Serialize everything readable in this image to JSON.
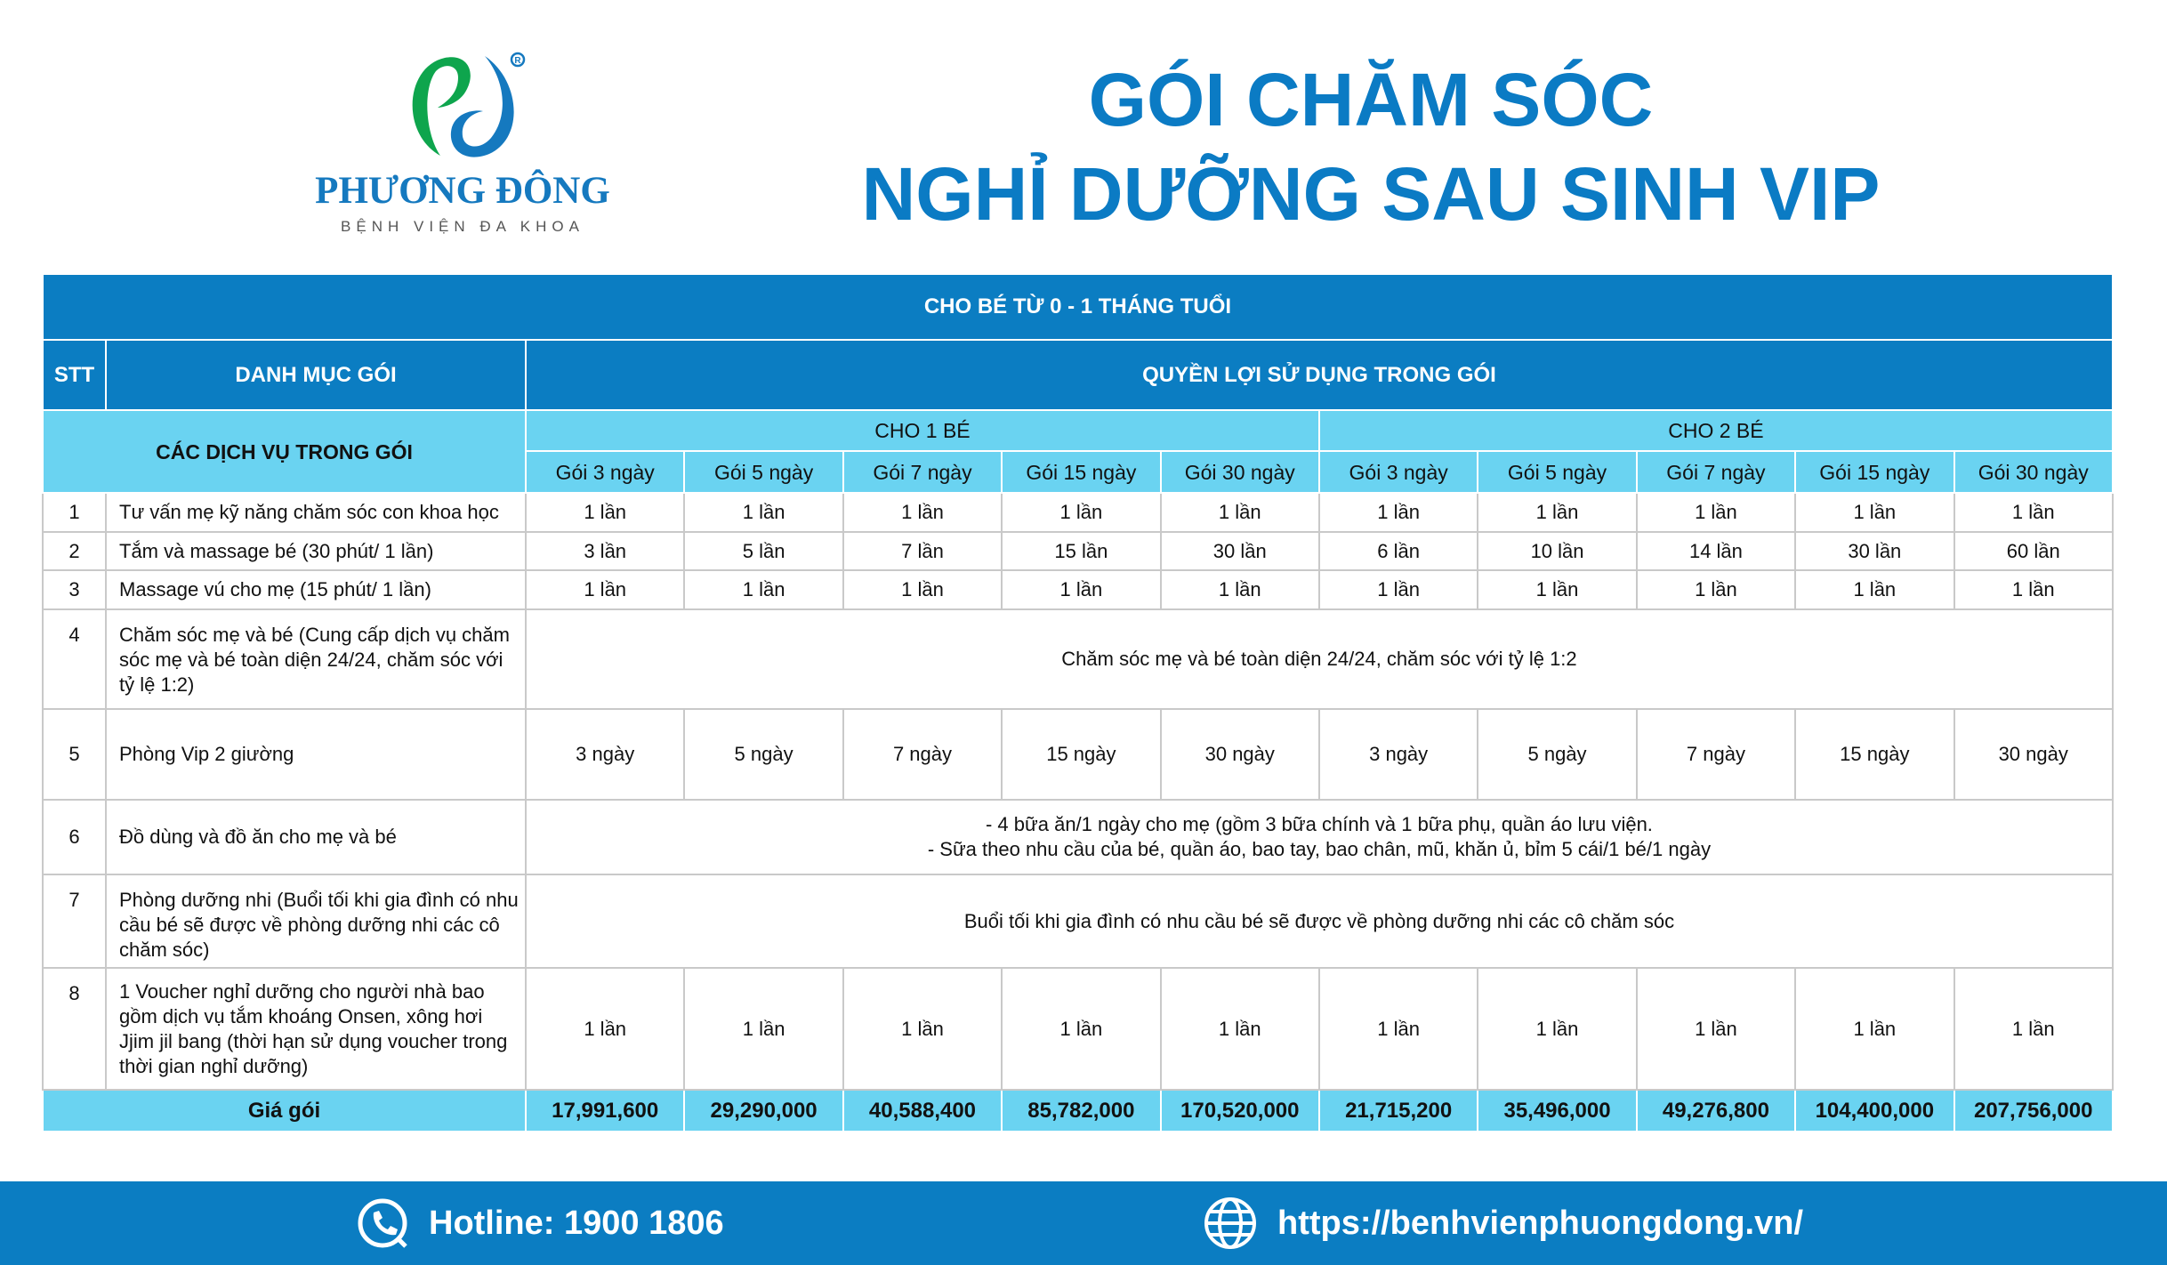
{
  "logo": {
    "brand": "PHƯƠNG ĐÔNG",
    "sub": "BỆNH VIỆN ĐA KHOA",
    "colors": {
      "green": "#0ea54d",
      "blue": "#1579bf"
    }
  },
  "title": {
    "line1": "GÓI CHĂM SÓC",
    "line2": "NGHỈ DƯỠNG SAU SINH VIP"
  },
  "colors": {
    "dark_blue": "#0b7dc2",
    "light_blue": "#6ad3f1"
  },
  "table": {
    "banner": "CHO BÉ TỪ 0 - 1 THÁNG TUỔI",
    "col_stt": "STT",
    "col_category": "DANH MỤC GÓI",
    "col_benefits": "QUYỀN LỢI SỬ DỤNG TRONG GÓI",
    "services_label": "CÁC DỊCH VỤ TRONG GÓI",
    "group1": "CHO 1 BÉ",
    "group2": "CHO 2 BÉ",
    "packages": [
      "Gói 3 ngày",
      "Gói 5 ngày",
      "Gói 7 ngày",
      "Gói 15 ngày",
      "Gói 30 ngày",
      "Gói 3 ngày",
      "Gói 5 ngày",
      "Gói 7 ngày",
      "Gói 15 ngày",
      "Gói 30 ngày"
    ],
    "rows": [
      {
        "stt": "1",
        "name": "Tư vấn mẹ kỹ năng chăm sóc con khoa học",
        "values": [
          "1 lần",
          "1 lần",
          "1 lần",
          "1 lần",
          "1 lần",
          "1 lần",
          "1 lần",
          "1 lần",
          "1 lần",
          "1 lần"
        ]
      },
      {
        "stt": "2",
        "name": "Tắm và massage bé (30 phút/ 1 lần)",
        "values": [
          "3 lần",
          "5 lần",
          "7 lần",
          "15 lần",
          "30 lần",
          "6 lần",
          "10 lần",
          "14 lần",
          "30 lần",
          "60 lần"
        ]
      },
      {
        "stt": "3",
        "name": "Massage vú cho mẹ (15 phút/ 1 lần)",
        "values": [
          "1 lần",
          "1 lần",
          "1 lần",
          "1 lần",
          "1 lần",
          "1 lần",
          "1 lần",
          "1 lần",
          "1 lần",
          "1 lần"
        ]
      },
      {
        "stt": "4",
        "name": "Chăm sóc mẹ và bé (Cung cấp dịch vụ chăm sóc mẹ và bé toàn diện 24/24, chăm sóc với tỷ lệ 1:2)",
        "merged": "Chăm sóc mẹ và bé toàn diện 24/24, chăm sóc với tỷ lệ 1:2"
      },
      {
        "stt": "5",
        "name": "Phòng Vip 2 giường",
        "values": [
          "3 ngày",
          "5 ngày",
          "7 ngày",
          "15 ngày",
          "30 ngày",
          "3 ngày",
          "5 ngày",
          "7 ngày",
          "15 ngày",
          "30 ngày"
        ]
      },
      {
        "stt": "6",
        "name": "Đồ dùng và đồ ăn cho mẹ và bé",
        "merged_lines": [
          "- 4 bữa ăn/1 ngày cho mẹ (gồm 3 bữa chính và 1 bữa phụ, quần áo lưu viện.",
          "- Sữa theo nhu cầu của bé, quần áo, bao tay, bao chân, mũ, khăn ủ, bỉm 5 cái/1 bé/1 ngày"
        ]
      },
      {
        "stt": "7",
        "name": "Phòng dưỡng nhi (Buổi tối khi gia đình có nhu cầu bé sẽ được về phòng dưỡng nhi các cô chăm sóc)",
        "merged": "Buổi tối khi gia đình có nhu cầu bé sẽ được về phòng dưỡng nhi các cô chăm sóc"
      },
      {
        "stt": "8",
        "name": "1 Voucher nghỉ dưỡng cho người nhà bao gồm dịch vụ tắm khoáng Onsen, xông hơi Jjim jil bang (thời hạn sử dụng voucher trong thời gian nghỉ dưỡng)",
        "values": [
          "1 lần",
          "1 lần",
          "1 lần",
          "1 lần",
          "1 lần",
          "1 lần",
          "1 lần",
          "1 lần",
          "1 lần",
          "1 lần"
        ]
      }
    ],
    "price_label": "Giá gói",
    "prices": [
      "17,991,600",
      "29,290,000",
      "40,588,400",
      "85,782,000",
      "170,520,000",
      "21,715,200",
      "35,496,000",
      "49,276,800",
      "104,400,000",
      "207,756,000"
    ]
  },
  "footer": {
    "hotline": "Hotline: 1900 1806",
    "website": "https://benhvienphuongdong.vn/",
    "icons": [
      "phone-icon",
      "globe-icon"
    ]
  }
}
